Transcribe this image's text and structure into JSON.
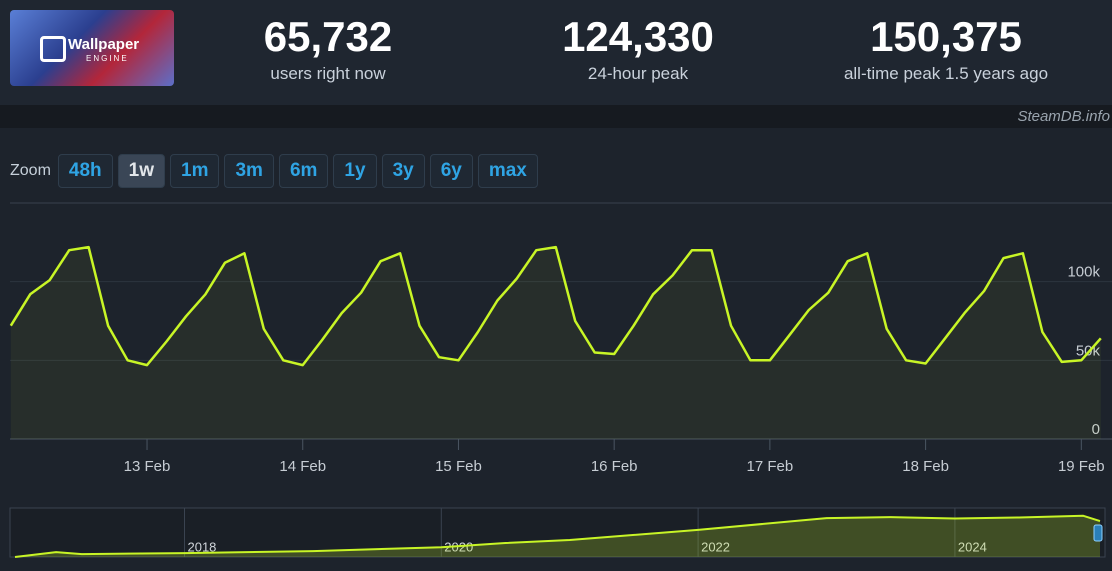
{
  "header": {
    "logo": {
      "title": "Wallpaper",
      "subtitle": "ENGINE"
    },
    "stats": [
      {
        "value": "65,732",
        "label": "users right now"
      },
      {
        "value": "124,330",
        "label": "24-hour peak"
      },
      {
        "value": "150,375",
        "label": "all-time peak 1.5 years ago"
      }
    ]
  },
  "watermark": "SteamDB.info",
  "zoom": {
    "label": "Zoom",
    "buttons": [
      "48h",
      "1w",
      "1m",
      "3m",
      "6m",
      "1y",
      "3y",
      "6y",
      "max"
    ],
    "active": "1w"
  },
  "chart_data": [
    {
      "type": "line",
      "color": "#c8f526",
      "grid": true,
      "x": [
        12.125,
        12.25,
        12.375,
        12.5,
        12.625,
        12.75,
        12.875,
        13.0,
        13.125,
        13.25,
        13.375,
        13.5,
        13.625,
        13.75,
        13.875,
        14.0,
        14.125,
        14.25,
        14.375,
        14.5,
        14.625,
        14.75,
        14.875,
        15.0,
        15.125,
        15.25,
        15.375,
        15.5,
        15.625,
        15.75,
        15.875,
        16.0,
        16.125,
        16.25,
        16.375,
        16.5,
        16.625,
        16.75,
        16.875,
        17.0,
        17.125,
        17.25,
        17.375,
        17.5,
        17.625,
        17.75,
        17.875,
        18.0,
        18.125,
        18.25,
        18.375,
        18.5,
        18.625,
        18.75,
        18.875,
        19.0,
        19.125
      ],
      "values": [
        72000,
        92000,
        101000,
        120000,
        122000,
        72000,
        50000,
        47000,
        62000,
        78000,
        92000,
        112000,
        118000,
        70000,
        50000,
        47000,
        63000,
        80000,
        93000,
        113000,
        118000,
        72000,
        52000,
        50000,
        68000,
        88000,
        102000,
        120000,
        122000,
        75000,
        55000,
        54000,
        72000,
        92000,
        104000,
        120000,
        120000,
        72000,
        50000,
        50000,
        66000,
        82000,
        93000,
        113000,
        118000,
        70000,
        50000,
        48000,
        64000,
        80000,
        94000,
        115000,
        118000,
        68000,
        49000,
        50000,
        64000
      ],
      "xlim": [
        12.12,
        19.12
      ],
      "xticks": [
        {
          "value": 13,
          "label": "13 Feb"
        },
        {
          "value": 14,
          "label": "14 Feb"
        },
        {
          "value": 15,
          "label": "15 Feb"
        },
        {
          "value": 16,
          "label": "16 Feb"
        },
        {
          "value": 17,
          "label": "17 Feb"
        },
        {
          "value": 18,
          "label": "18 Feb"
        },
        {
          "value": 19,
          "label": "19 Feb"
        }
      ],
      "ylim": [
        0,
        150000
      ],
      "yticks": [
        0,
        {
          "value": 50000,
          "label": "50k"
        },
        {
          "value": 100000,
          "label": "100k"
        }
      ]
    },
    {
      "type": "area",
      "color": "#c8f526",
      "grid": true,
      "x": [
        2016.68,
        2017.0,
        2017.2,
        2018.0,
        2019.0,
        2020.0,
        2020.5,
        2021.0,
        2022.0,
        2023.0,
        2023.5,
        2024.0,
        2024.5,
        2025.0,
        2025.13
      ],
      "values": [
        0,
        15000,
        9000,
        12000,
        18000,
        30000,
        43000,
        52000,
        83000,
        119000,
        122000,
        118000,
        121000,
        126000,
        110000
      ],
      "xlim": [
        2016.68,
        2025.13
      ],
      "xticks": [
        2018,
        2020,
        2022,
        2024
      ],
      "ylim": [
        0,
        150000
      ]
    }
  ]
}
